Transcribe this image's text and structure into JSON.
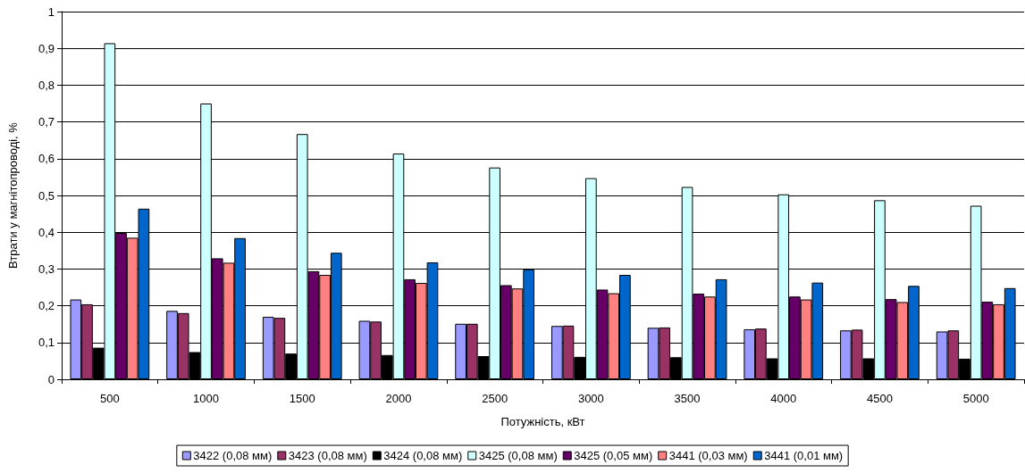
{
  "chart_data": {
    "type": "bar",
    "xlabel": "Потужність, кВт",
    "ylabel": "Втрати у магнітопроводі, %",
    "categories": [
      "500",
      "1000",
      "1500",
      "2000",
      "2500",
      "3000",
      "3500",
      "4000",
      "4500",
      "5000"
    ],
    "series": [
      {
        "name": "3422 (0,08 мм)",
        "color": "#9999ff",
        "values": [
          0.217,
          0.186,
          0.17,
          0.159,
          0.151,
          0.145,
          0.14,
          0.136,
          0.133,
          0.13
        ]
      },
      {
        "name": "3423 (0,08 мм)",
        "color": "#993366",
        "values": [
          0.204,
          0.18,
          0.167,
          0.157,
          0.151,
          0.146,
          0.141,
          0.138,
          0.135,
          0.133
        ]
      },
      {
        "name": "3424 (0,08 мм)",
        "color": "#000000",
        "values": [
          0.086,
          0.074,
          0.07,
          0.066,
          0.063,
          0.061,
          0.06,
          0.057,
          0.057,
          0.056
        ]
      },
      {
        "name": "3425 (0,08 мм)",
        "color": "#ccffff",
        "values": [
          0.914,
          0.75,
          0.667,
          0.614,
          0.576,
          0.547,
          0.523,
          0.503,
          0.487,
          0.472
        ]
      },
      {
        "name": "3425 (0,05 мм)",
        "color": "#660066",
        "values": [
          0.398,
          0.329,
          0.294,
          0.272,
          0.256,
          0.244,
          0.233,
          0.225,
          0.218,
          0.211
        ]
      },
      {
        "name": "3441 (0,03 мм)",
        "color": "#ff8080",
        "values": [
          0.385,
          0.317,
          0.284,
          0.262,
          0.247,
          0.234,
          0.225,
          0.217,
          0.21,
          0.204
        ]
      },
      {
        "name": "3441 (0,01 мм)",
        "color": "#0066cc",
        "values": [
          0.464,
          0.384,
          0.344,
          0.318,
          0.299,
          0.284,
          0.272,
          0.263,
          0.254,
          0.248
        ]
      }
    ],
    "ylim": [
      0,
      1
    ],
    "yticks": [
      0,
      {
        "value": 0.1,
        "label": "0,1"
      },
      {
        "value": 0.2,
        "label": "0,2"
      },
      {
        "value": 0.3,
        "label": "0,3"
      },
      {
        "value": 0.4,
        "label": "0,4"
      },
      {
        "value": 0.5,
        "label": "0,5"
      },
      {
        "value": 0.6,
        "label": "0,6"
      },
      {
        "value": 0.7,
        "label": "0,7"
      },
      {
        "value": 0.8,
        "label": "0,8"
      },
      {
        "value": 0.9,
        "label": "0,9"
      },
      1
    ],
    "grid": "y",
    "legend": "bottom"
  }
}
